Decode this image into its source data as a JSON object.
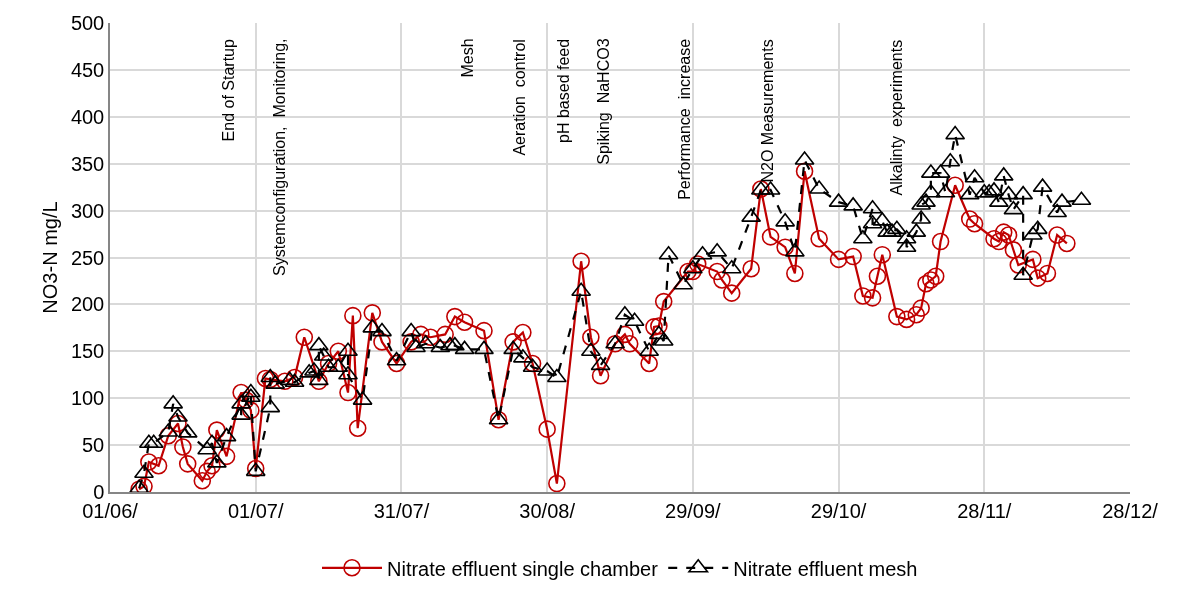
{
  "chart_data": {
    "type": "line",
    "ylabel": "NO3-N mg/L",
    "xlim": [
      "--06-01",
      "--12-28"
    ],
    "xticks": [
      {
        "value": "--06-01",
        "label": "01/06/"
      },
      {
        "value": "--07-01",
        "label": "01/07/"
      },
      {
        "value": "--07-31",
        "label": "31/07/"
      },
      {
        "value": "--08-30",
        "label": "30/08/"
      },
      {
        "value": "--09-29",
        "label": "29/09/"
      },
      {
        "value": "--10-29",
        "label": "29/10/"
      },
      {
        "value": "--11-28",
        "label": "28/11/"
      },
      {
        "value": "--12-28",
        "label": "28/12/"
      }
    ],
    "ylim": [
      0,
      500
    ],
    "yticks": [
      0,
      50,
      100,
      150,
      200,
      250,
      300,
      350,
      400,
      450,
      500
    ],
    "grid": true,
    "legend": "bottom",
    "series": [
      {
        "name": "Nitrate effluent single chamber",
        "color": "#c00000",
        "marker": "circle",
        "line_style": "solid",
        "x": [
          "--06-07",
          "--06-08",
          "--06-09",
          "--06-11",
          "--06-13",
          "--06-15",
          "--06-16",
          "--06-17",
          "--06-20",
          "--06-21",
          "--06-22",
          "--06-23",
          "--06-25",
          "--06-28",
          "--06-29",
          "--06-30",
          "--07-01",
          "--07-03",
          "--07-04",
          "--07-07",
          "--07-09",
          "--07-11",
          "--07-14",
          "--07-16",
          "--07-18",
          "--07-20",
          "--07-21",
          "--07-22",
          "--07-25",
          "--07-27",
          "--07-30",
          "--08-02",
          "--08-04",
          "--08-06",
          "--08-09",
          "--08-11",
          "--08-13",
          "--08-17",
          "--08-20",
          "--08-23",
          "--08-25",
          "--08-27",
          "--08-30",
          "--09-01",
          "--09-06",
          "--09-08",
          "--09-10",
          "--09-13",
          "--09-15",
          "--09-16",
          "--09-20",
          "--09-21",
          "--09-22",
          "--09-23",
          "--09-28",
          "--09-29",
          "--09-30",
          "--10-04",
          "--10-05",
          "--10-07",
          "--10-11",
          "--10-13",
          "--10-15",
          "--10-18",
          "--10-20",
          "--10-22",
          "--10-25",
          "--10-29",
          "--11-01",
          "--11-03",
          "--11-05",
          "--11-06",
          "--11-07",
          "--11-10",
          "--11-12",
          "--11-14",
          "--11-15",
          "--11-16",
          "--11-17",
          "--11-18",
          "--11-19",
          "--11-22",
          "--11-25",
          "--11-26",
          "--11-30",
          "--12-01",
          "--12-02",
          "--12-03",
          "--12-04",
          "--12-05",
          "--12-08",
          "--12-09",
          "--12-11",
          "--12-13",
          "--12-15"
        ],
        "values": [
          3,
          6,
          32,
          28,
          60,
          73,
          48,
          30,
          12,
          22,
          28,
          66,
          38,
          106,
          98,
          87,
          25,
          121,
          120,
          118,
          122,
          165,
          118,
          137,
          150,
          106,
          188,
          68,
          191,
          160,
          137,
          160,
          168,
          165,
          168,
          187,
          181,
          172,
          77,
          160,
          170,
          137,
          67,
          9,
          246,
          165,
          124,
          158,
          168,
          158,
          137,
          176,
          177,
          203,
          235,
          235,
          243,
          235,
          226,
          212,
          238,
          323,
          272,
          261,
          233,
          342,
          270,
          248,
          251,
          209,
          207,
          230,
          253,
          187,
          184,
          189,
          196,
          222,
          226,
          230,
          267,
          327,
          291,
          286,
          270,
          267,
          277,
          274,
          258,
          242,
          248,
          228,
          233,
          274,
          265
        ]
      },
      {
        "name": "Nitrate effluent mesh",
        "color": "#000000",
        "marker": "triangle",
        "line_style": "dashed",
        "x": [
          "--06-07",
          "--06-08",
          "--06-09",
          "--06-10",
          "--06-13",
          "--06-14",
          "--06-15",
          "--06-17",
          "--06-21",
          "--06-22",
          "--06-23",
          "--06-25",
          "--06-28",
          "--06-28",
          "--06-30",
          "--06-30",
          "--07-01",
          "--07-04",
          "--07-04",
          "--07-05",
          "--07-08",
          "--07-09",
          "--07-12",
          "--07-13",
          "--07-14",
          "--07-14",
          "--07-15",
          "--07-16",
          "--07-18",
          "--07-20",
          "--07-20",
          "--07-23",
          "--07-25",
          "--07-27",
          "--07-30",
          "--08-02",
          "--08-03",
          "--08-05",
          "--08-08",
          "--08-10",
          "--08-11",
          "--08-13",
          "--08-17",
          "--08-20",
          "--08-23",
          "--08-25",
          "--08-27",
          "--08-30",
          "--09-01",
          "--09-06",
          "--09-08",
          "--09-10",
          "--09-13",
          "--09-15",
          "--09-17",
          "--09-20",
          "--09-22",
          "--09-23",
          "--09-24",
          "--09-27",
          "--09-29",
          "--10-01",
          "--10-04",
          "--10-07",
          "--10-11",
          "--10-13",
          "--10-15",
          "--10-18",
          "--10-20",
          "--10-22",
          "--10-25",
          "--10-29",
          "--11-01",
          "--11-03",
          "--11-05",
          "--11-05",
          "--11-07",
          "--11-08",
          "--11-09",
          "--11-10",
          "--11-12",
          "--11-12",
          "--11-14",
          "--11-15",
          "--11-15",
          "--11-16",
          "--11-17",
          "--11-17",
          "--11-19",
          "--11-20",
          "--11-21",
          "--11-22",
          "--11-25",
          "--11-26",
          "--11-28",
          "--11-29",
          "--11-30",
          "--12-01",
          "--12-02",
          "--12-03",
          "--12-04",
          "--12-06",
          "--12-06",
          "--12-08",
          "--12-09",
          "--12-10",
          "--12-13",
          "--12-14",
          "--12-18"
        ],
        "values": [
          4,
          20,
          52,
          52,
          64,
          94,
          80,
          63,
          45,
          52,
          31,
          59,
          94,
          82,
          106,
          101,
          22,
          90,
          122,
          115,
          119,
          117,
          127,
          129,
          119,
          156,
          145,
          133,
          133,
          150,
          125,
          98,
          175,
          171,
          140,
          171,
          154,
          158,
          154,
          156,
          156,
          152,
          152,
          77,
          152,
          143,
          133,
          129,
          122,
          214,
          150,
          135,
          158,
          189,
          182,
          150,
          168,
          161,
          253,
          221,
          238,
          253,
          256,
          238,
          293,
          322,
          322,
          288,
          256,
          354,
          323,
          309,
          305,
          270,
          302,
          286,
          289,
          277,
          277,
          280,
          270,
          261,
          277,
          291,
          306,
          309,
          319,
          340,
          340,
          319,
          352,
          381,
          317,
          335,
          319,
          319,
          321,
          309,
          337,
          317,
          301,
          317,
          231,
          274,
          280,
          325,
          298,
          309,
          311
        ]
      }
    ],
    "annotations": [
      "End of Startup",
      "Systemconfiguration,  Monitoring,",
      "Mesh",
      "Aeration  control",
      "pH based feed",
      "Spiking  NaHCO3",
      "Performance  increase",
      "N2O Measurements",
      "Alkalinty  experiments"
    ]
  }
}
